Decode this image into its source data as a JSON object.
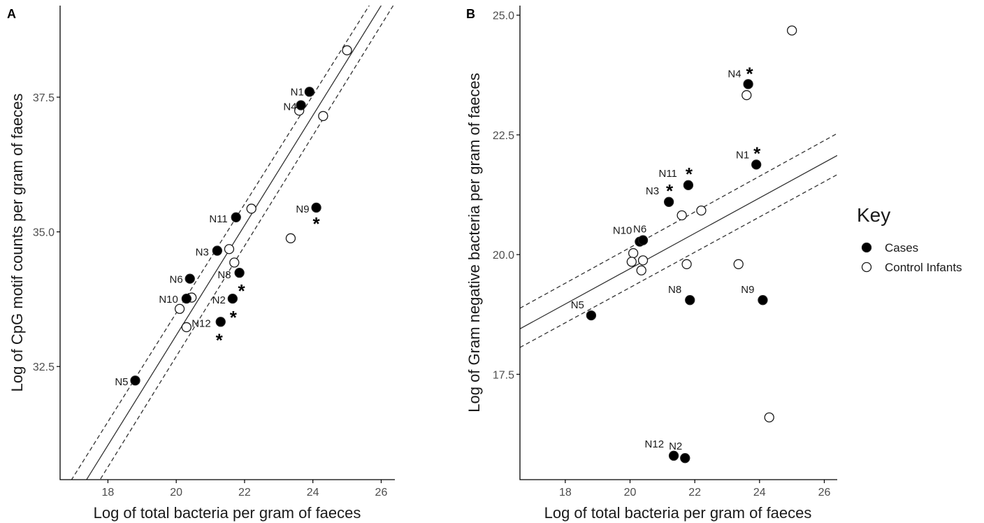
{
  "chart_data": [
    {
      "type": "scatter",
      "panel_label": "A",
      "xlabel": "Log of total bacteria per gram of faeces",
      "ylabel": "Log of CpG motif counts per gram of faeces",
      "xlim": [
        16.6,
        26.4
      ],
      "ylim": [
        30.4,
        39.2
      ],
      "xticks": [
        18,
        20,
        22,
        24,
        26
      ],
      "xtick_labels": [
        "18",
        "20",
        "22",
        "24",
        "26"
      ],
      "yticks": [
        32.5,
        35.0,
        37.5
      ],
      "ytick_labels": [
        "32.5",
        "35.0",
        "37.5"
      ],
      "grid": false,
      "series": [
        {
          "name": "Cases",
          "marker": "filled-circle",
          "points": [
            {
              "label": "N1",
              "x": 23.9,
              "y": 37.6,
              "star": false
            },
            {
              "label": "N4",
              "x": 23.65,
              "y": 37.35,
              "star": false
            },
            {
              "label": "N9",
              "x": 24.1,
              "y": 35.45,
              "star": true
            },
            {
              "label": "N11",
              "x": 21.75,
              "y": 35.27,
              "star": false
            },
            {
              "label": "N3",
              "x": 21.2,
              "y": 34.65,
              "star": false
            },
            {
              "label": "N8",
              "x": 21.85,
              "y": 34.24,
              "star": true
            },
            {
              "label": "N6",
              "x": 20.4,
              "y": 34.13,
              "star": false
            },
            {
              "label": "N10",
              "x": 20.3,
              "y": 33.76,
              "star": false
            },
            {
              "label": "N2",
              "x": 21.65,
              "y": 33.76,
              "star": true
            },
            {
              "label": "N12",
              "x": 21.3,
              "y": 33.33,
              "star": true
            },
            {
              "label": "N5",
              "x": 18.8,
              "y": 32.24,
              "star": false
            }
          ]
        },
        {
          "name": "Control Infants",
          "marker": "open-circle",
          "points": [
            {
              "x": 25.0,
              "y": 38.37
            },
            {
              "x": 24.3,
              "y": 37.15
            },
            {
              "x": 23.6,
              "y": 37.25
            },
            {
              "x": 22.2,
              "y": 35.43
            },
            {
              "x": 23.35,
              "y": 34.88
            },
            {
              "x": 21.55,
              "y": 34.68
            },
            {
              "x": 21.7,
              "y": 34.43
            },
            {
              "x": 20.45,
              "y": 33.78
            },
            {
              "x": 20.1,
              "y": 33.57
            },
            {
              "x": 20.3,
              "y": 33.23
            }
          ]
        }
      ],
      "fit": {
        "line": {
          "x": [
            16.6,
            26.4
          ],
          "y": [
            29.61,
            39.61
          ]
        },
        "lower": {
          "x": [
            16.6,
            26.4
          ],
          "y": [
            29.2,
            39.25
          ]
        },
        "upper": {
          "x": [
            16.6,
            26.4
          ],
          "y": [
            30.06,
            39.96
          ]
        }
      }
    },
    {
      "type": "scatter",
      "panel_label": "B",
      "xlabel": "Log of total bacteria per gram of faeces",
      "ylabel": "Log of Gram negative bacteria per gram of faeces",
      "xlim": [
        16.6,
        26.4
      ],
      "ylim": [
        15.3,
        25.2
      ],
      "xticks": [
        18,
        20,
        22,
        24,
        26
      ],
      "xtick_labels": [
        "18",
        "20",
        "22",
        "24",
        "26"
      ],
      "yticks": [
        17.5,
        20.0,
        22.5,
        25.0
      ],
      "ytick_labels": [
        "17.5",
        "20.0",
        "22.5",
        "25.0"
      ],
      "grid": false,
      "series": [
        {
          "name": "Cases",
          "marker": "filled-circle",
          "points": [
            {
              "label": "N4",
              "x": 23.65,
              "y": 23.56,
              "star": true
            },
            {
              "label": "N1",
              "x": 23.9,
              "y": 21.88,
              "star": true
            },
            {
              "label": "N11",
              "x": 21.8,
              "y": 21.45,
              "star": true
            },
            {
              "label": "N3",
              "x": 21.2,
              "y": 21.1,
              "star": true
            },
            {
              "label": "N10",
              "x": 20.3,
              "y": 20.27,
              "star": false
            },
            {
              "label": "N6",
              "x": 20.4,
              "y": 20.3,
              "star": false
            },
            {
              "label": "N8",
              "x": 21.85,
              "y": 19.05,
              "star": false
            },
            {
              "label": "N9",
              "x": 24.1,
              "y": 19.05,
              "star": false
            },
            {
              "label": "N5",
              "x": 18.8,
              "y": 18.73,
              "star": false
            },
            {
              "label": "N12",
              "x": 21.35,
              "y": 15.8,
              "star": false
            },
            {
              "label": "N2",
              "x": 21.7,
              "y": 15.75,
              "star": false
            }
          ]
        },
        {
          "name": "Control Infants",
          "marker": "open-circle",
          "points": [
            {
              "x": 25.0,
              "y": 24.68
            },
            {
              "x": 23.6,
              "y": 23.33
            },
            {
              "x": 22.2,
              "y": 20.92
            },
            {
              "x": 21.6,
              "y": 20.82
            },
            {
              "x": 20.1,
              "y": 20.03
            },
            {
              "x": 20.05,
              "y": 19.85
            },
            {
              "x": 20.4,
              "y": 19.88
            },
            {
              "x": 20.35,
              "y": 19.67
            },
            {
              "x": 21.75,
              "y": 19.8
            },
            {
              "x": 23.35,
              "y": 19.8
            },
            {
              "x": 24.3,
              "y": 16.6
            }
          ]
        }
      ],
      "fit": {
        "line": {
          "x": [
            16.6,
            26.4
          ],
          "y": [
            18.45,
            22.07
          ]
        },
        "lower": {
          "x": [
            16.6,
            26.4
          ],
          "y": [
            18.06,
            21.67
          ]
        },
        "upper": {
          "x": [
            16.6,
            26.4
          ],
          "y": [
            18.88,
            22.53
          ]
        }
      }
    }
  ],
  "legend": {
    "title": "Key",
    "placement": "right",
    "items": [
      {
        "label": "Cases",
        "marker": "filled-circle"
      },
      {
        "label": "Control Infants",
        "marker": "open-circle"
      }
    ]
  },
  "star_symbol": "*",
  "colors": {
    "case_fill": "#000000",
    "control_fill": "#ffffff",
    "marker_stroke": "#1a1a1a",
    "fit_line": "#333333",
    "axis": "#000000"
  }
}
